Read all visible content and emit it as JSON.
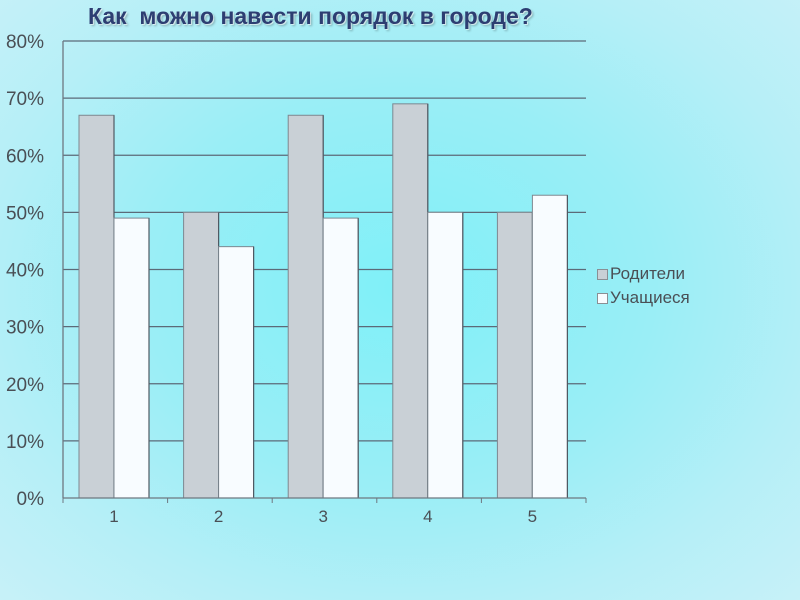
{
  "chart_data": {
    "type": "bar",
    "title": "Как  можно навести порядок в городе?",
    "categories": [
      "1",
      "2",
      "3",
      "4",
      "5"
    ],
    "series": [
      {
        "name": "Родители",
        "values": [
          67,
          50,
          67,
          69,
          50
        ],
        "color": "#c9d0d6"
      },
      {
        "name": "Учащиеся",
        "values": [
          49,
          44,
          49,
          50,
          53
        ],
        "color": "#f8fcff"
      }
    ],
    "ylim": [
      0,
      80
    ],
    "yticks": [
      "0%",
      "10%",
      "20%",
      "30%",
      "40%",
      "50%",
      "60%",
      "70%",
      "80%"
    ],
    "ytick_values": [
      0,
      10,
      20,
      30,
      40,
      50,
      60,
      70,
      80
    ],
    "grid": true,
    "legend_position": "right"
  }
}
